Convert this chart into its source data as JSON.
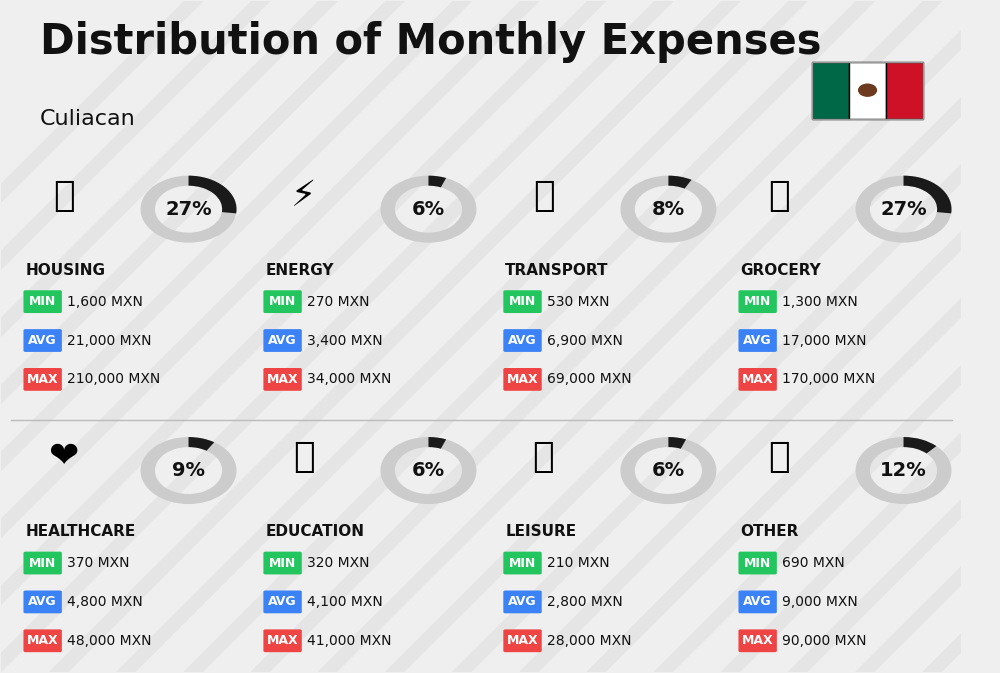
{
  "title": "Distribution of Monthly Expenses",
  "subtitle": "Culiacan",
  "background_color": "#efefef",
  "categories": [
    {
      "name": "HOUSING",
      "percent": 27,
      "min_val": "1,600 MXN",
      "avg_val": "21,000 MXN",
      "max_val": "210,000 MXN",
      "col": 0,
      "row": 0
    },
    {
      "name": "ENERGY",
      "percent": 6,
      "min_val": "270 MXN",
      "avg_val": "3,400 MXN",
      "max_val": "34,000 MXN",
      "col": 1,
      "row": 0
    },
    {
      "name": "TRANSPORT",
      "percent": 8,
      "min_val": "530 MXN",
      "avg_val": "6,900 MXN",
      "max_val": "69,000 MXN",
      "col": 2,
      "row": 0
    },
    {
      "name": "GROCERY",
      "percent": 27,
      "min_val": "1,300 MXN",
      "avg_val": "17,000 MXN",
      "max_val": "170,000 MXN",
      "col": 3,
      "row": 0
    },
    {
      "name": "HEALTHCARE",
      "percent": 9,
      "min_val": "370 MXN",
      "avg_val": "4,800 MXN",
      "max_val": "48,000 MXN",
      "col": 0,
      "row": 1
    },
    {
      "name": "EDUCATION",
      "percent": 6,
      "min_val": "320 MXN",
      "avg_val": "4,100 MXN",
      "max_val": "41,000 MXN",
      "col": 1,
      "row": 1
    },
    {
      "name": "LEISURE",
      "percent": 6,
      "min_val": "210 MXN",
      "avg_val": "2,800 MXN",
      "max_val": "28,000 MXN",
      "col": 2,
      "row": 1
    },
    {
      "name": "OTHER",
      "percent": 12,
      "min_val": "690 MXN",
      "avg_val": "9,000 MXN",
      "max_val": "90,000 MXN",
      "col": 3,
      "row": 1
    }
  ],
  "min_color": "#22c55e",
  "avg_color": "#3b82f6",
  "max_color": "#ef4444",
  "label_color": "#ffffff",
  "text_color": "#111111",
  "donut_bg_color": "#cccccc",
  "donut_fill_color": "#1a1a1a",
  "title_fontsize": 30,
  "subtitle_fontsize": 16,
  "category_fontsize": 11,
  "value_fontsize": 10,
  "percent_fontsize": 14
}
